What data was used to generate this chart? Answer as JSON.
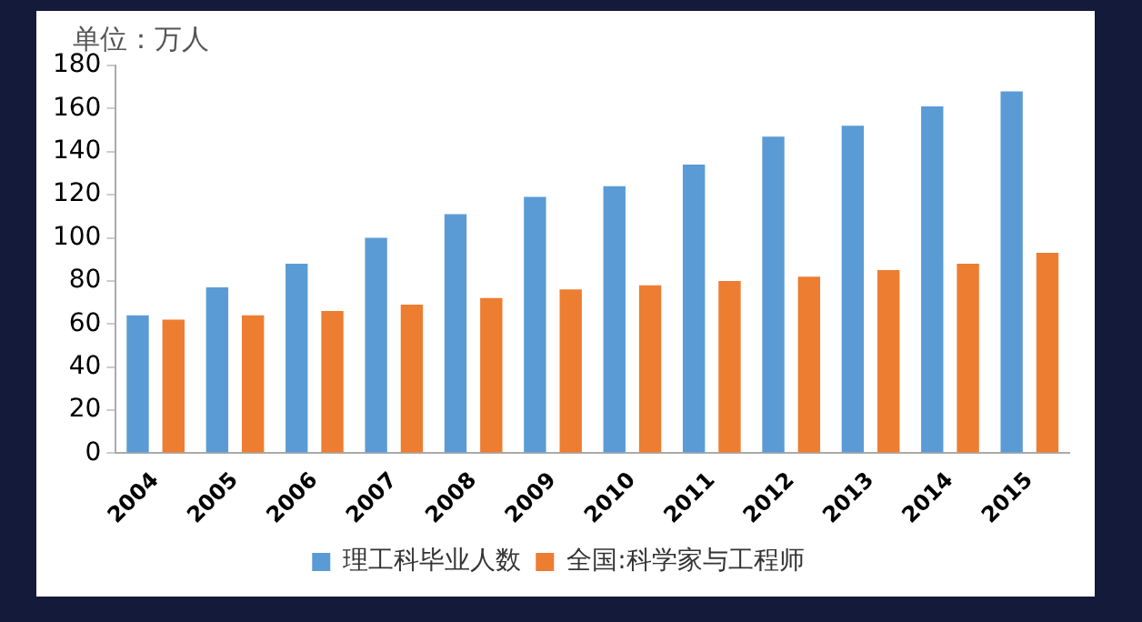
{
  "chart_data": {
    "type": "bar",
    "ylabel": "单位：万人",
    "categories": [
      "2004",
      "2005",
      "2006",
      "2007",
      "2008",
      "2009",
      "2010",
      "2011",
      "2012",
      "2013",
      "2014",
      "2015"
    ],
    "series": [
      {
        "name": "理工科毕业人数",
        "color": "#5b9bd5",
        "values": [
          64,
          77,
          88,
          100,
          111,
          119,
          124,
          134,
          147,
          152,
          161,
          168
        ]
      },
      {
        "name": "全国:科学家与工程师",
        "color": "#ed7d31",
        "values": [
          62,
          64,
          66,
          69,
          72,
          76,
          78,
          80,
          82,
          85,
          88,
          93
        ]
      }
    ],
    "ylim": [
      0,
      180
    ],
    "yticks": [
      0,
      20,
      40,
      60,
      80,
      100,
      120,
      140,
      160,
      180
    ],
    "grid": false,
    "legend": "bottom"
  }
}
